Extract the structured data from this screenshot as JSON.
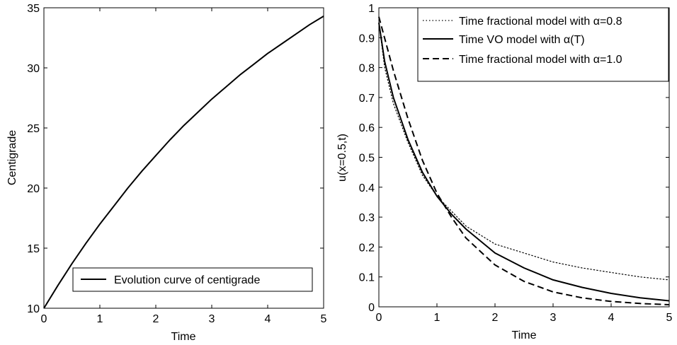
{
  "chart_data": [
    {
      "type": "line",
      "title": "",
      "xlabel": "Time",
      "ylabel": "Centigrade",
      "xlim": [
        0,
        5
      ],
      "ylim": [
        10,
        35
      ],
      "xticks": [
        0,
        1,
        2,
        3,
        4,
        5
      ],
      "yticks": [
        10,
        15,
        20,
        25,
        30,
        35
      ],
      "grid": false,
      "legend_position": "bottom-right",
      "series": [
        {
          "name": "Evolution curve of centigrade",
          "style": "solid",
          "color": "#000000",
          "x": [
            0,
            0.25,
            0.5,
            0.75,
            1,
            1.25,
            1.5,
            1.75,
            2,
            2.25,
            2.5,
            2.75,
            3,
            3.25,
            3.5,
            3.75,
            4,
            4.25,
            4.5,
            4.75,
            5
          ],
          "y": [
            10,
            11.9,
            13.7,
            15.4,
            17.0,
            18.5,
            20.0,
            21.4,
            22.7,
            24.0,
            25.2,
            26.3,
            27.4,
            28.4,
            29.4,
            30.3,
            31.2,
            32.0,
            32.8,
            33.6,
            34.3
          ]
        }
      ]
    },
    {
      "type": "line",
      "title": "",
      "xlabel": "Time",
      "ylabel": "u(x=0.5,t)",
      "xlim": [
        0,
        5
      ],
      "ylim": [
        0,
        1
      ],
      "xticks": [
        0,
        1,
        2,
        3,
        4,
        5
      ],
      "yticks": [
        0,
        0.1,
        0.2,
        0.3,
        0.4,
        0.5,
        0.6,
        0.7,
        0.8,
        0.9,
        1
      ],
      "grid": false,
      "legend_position": "top-right",
      "series": [
        {
          "name": "Time fractional model with α=0.8",
          "style": "dotted",
          "color": "#000000",
          "x": [
            0,
            0.1,
            0.25,
            0.5,
            0.75,
            1,
            1.25,
            1.5,
            2,
            2.5,
            3,
            3.5,
            4,
            4.5,
            5
          ],
          "y": [
            0.95,
            0.8,
            0.68,
            0.55,
            0.44,
            0.37,
            0.32,
            0.27,
            0.21,
            0.18,
            0.15,
            0.13,
            0.115,
            0.1,
            0.09
          ]
        },
        {
          "name": "Time VO model with α(T)",
          "style": "solid",
          "color": "#000000",
          "x": [
            0,
            0.1,
            0.25,
            0.5,
            0.75,
            1,
            1.25,
            1.5,
            2,
            2.5,
            3,
            3.5,
            4,
            4.5,
            5
          ],
          "y": [
            0.95,
            0.82,
            0.7,
            0.56,
            0.45,
            0.37,
            0.31,
            0.26,
            0.18,
            0.13,
            0.09,
            0.065,
            0.045,
            0.03,
            0.02
          ]
        },
        {
          "name": "Time fractional model with α=1.0",
          "style": "dashed",
          "color": "#000000",
          "x": [
            0,
            0.25,
            0.5,
            0.75,
            1,
            1.25,
            1.5,
            2,
            2.5,
            3,
            3.5,
            4,
            4.5,
            5
          ],
          "y": [
            0.97,
            0.79,
            0.63,
            0.49,
            0.38,
            0.3,
            0.23,
            0.14,
            0.085,
            0.05,
            0.03,
            0.018,
            0.011,
            0.007
          ]
        }
      ]
    }
  ]
}
